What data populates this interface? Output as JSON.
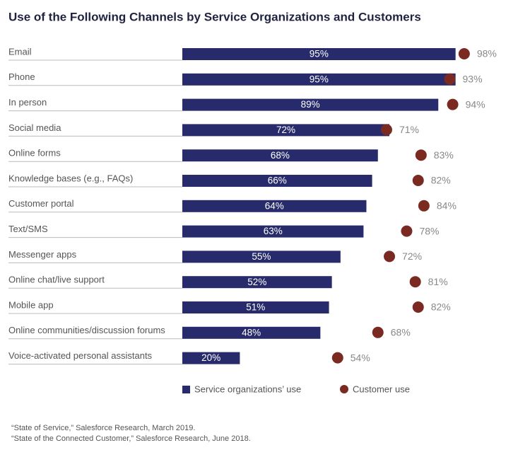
{
  "chart_data": {
    "type": "bar",
    "orientation": "horizontal",
    "title": "Use of the Following Channels by Service Organizations and Customers",
    "categories": [
      "Email",
      "Phone",
      "In person",
      "Social media",
      "Online forms",
      "Knowledge bases (e.g., FAQs)",
      "Customer portal",
      "Text/SMS",
      "Messenger apps",
      "Online chat/live support",
      "Mobile app",
      "Online communities/discussion forums",
      "Voice-activated personal assistants"
    ],
    "series": [
      {
        "name": "Service organizations’ use",
        "type": "bar",
        "color": "#272b6b",
        "values": [
          95,
          95,
          89,
          72,
          68,
          66,
          64,
          63,
          55,
          52,
          51,
          48,
          20
        ],
        "value_labels": [
          "95%",
          "95%",
          "89%",
          "72%",
          "68%",
          "66%",
          "64%",
          "63%",
          "55%",
          "52%",
          "51%",
          "48%",
          "20%"
        ]
      },
      {
        "name": "Customer use",
        "type": "dot",
        "color": "#7b2a22",
        "values": [
          98,
          93,
          94,
          71,
          83,
          82,
          84,
          78,
          72,
          81,
          82,
          68,
          54
        ],
        "value_labels": [
          "98%",
          "93%",
          "94%",
          "71%",
          "83%",
          "82%",
          "84%",
          "78%",
          "72%",
          "81%",
          "82%",
          "68%",
          "54%"
        ]
      }
    ],
    "xlim": [
      0,
      100
    ],
    "footnotes": [
      "“State of Service,” Salesforce Research, March 2019.",
      "“State of the Connected Customer,” Salesforce Research, June 2018."
    ]
  }
}
